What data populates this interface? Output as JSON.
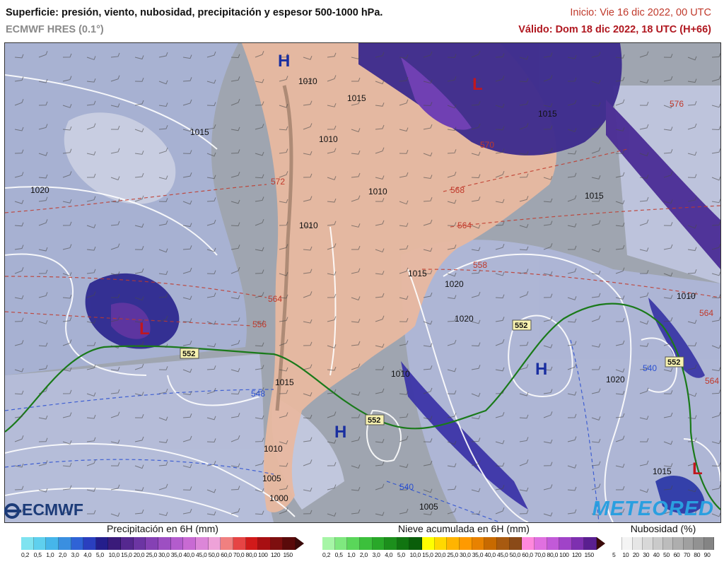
{
  "header": {
    "title": "Superficie: presión, viento, nubosidad, precipitación y espesor 500-1000 hPa.",
    "model": "ECMWF HRES (0.1°)",
    "init": "Inicio: Vie 16 dic 2022, 00 UTC",
    "valid": "Válido: Dom 18 dic 2022, 18 UTC (H+66)"
  },
  "map": {
    "pressure_centers": [
      {
        "type": "H",
        "color": "#1a2fa0"
      },
      {
        "type": "L",
        "color": "#c0171f"
      },
      {
        "type": "L",
        "color": "#c0171f"
      },
      {
        "type": "H",
        "color": "#1a2fa0"
      },
      {
        "type": "H",
        "color": "#1a2fa0"
      },
      {
        "type": "L",
        "color": "#c0171f"
      }
    ],
    "isobar_labels": [
      "1015",
      "1020",
      "1010",
      "1015",
      "1010",
      "1010",
      "1015",
      "1020",
      "1015",
      "1020",
      "1010",
      "1015",
      "1010",
      "1005",
      "1000",
      "1005",
      "1020",
      "1010",
      "1015",
      "1015",
      "1010"
    ],
    "thickness_labels_red": [
      "576",
      "572",
      "570",
      "568",
      "564",
      "564",
      "558",
      "556",
      "564",
      "564"
    ],
    "thickness_labels_blue": [
      "548",
      "540",
      "540"
    ],
    "boxed_labels": [
      "552",
      "552",
      "552",
      "552"
    ]
  },
  "logos": {
    "ecmwf": "ECMWF",
    "meteored": "METEORED"
  },
  "legends": {
    "precip": {
      "title": "Precipitación en 6H (mm)",
      "ticks": [
        "0,2",
        "0,5",
        "1,0",
        "2,0",
        "3,0",
        "4,0",
        "5,0",
        "10,0",
        "15,0",
        "20,0",
        "25,0",
        "30,0",
        "35,0",
        "40,0",
        "45,0",
        "50,0",
        "60,0",
        "70,0",
        "80,0",
        "100",
        "120",
        "150"
      ],
      "colors": [
        "#7fe3f0",
        "#5fd0ee",
        "#46b6ea",
        "#3a8fe0",
        "#2f63d6",
        "#2a3fbf",
        "#241e8c",
        "#3a1b7a",
        "#55288f",
        "#6c35a3",
        "#8541b4",
        "#9d4fc2",
        "#b35ccd",
        "#c86ad3",
        "#dc86d8",
        "#eea2d8",
        "#f08080",
        "#e64444",
        "#d11a1a",
        "#a80f12",
        "#7e0f0f",
        "#5a0a0a"
      ]
    },
    "snow": {
      "title": "Nieve acumulada en 6H (mm)",
      "ticks": [
        "0,2",
        "0,5",
        "1,0",
        "2,0",
        "3,0",
        "4,0",
        "5,0",
        "10,0",
        "15,0",
        "20,0",
        "25,0",
        "30,0",
        "35,0",
        "40,0",
        "45,0",
        "50,0",
        "60,0",
        "70,0",
        "80,0",
        "100",
        "120",
        "150"
      ],
      "colors": [
        "#a6f5a6",
        "#7fe87f",
        "#5ad65a",
        "#3cc03c",
        "#29a829",
        "#1c8f1c",
        "#117511",
        "#0a5e0a",
        "#ffff00",
        "#ffd800",
        "#ffb400",
        "#ff9a00",
        "#e88200",
        "#c86a00",
        "#a85a10",
        "#8a4a18",
        "#ff88dd",
        "#e070e0",
        "#c25ad8",
        "#a043c8",
        "#7e30b0",
        "#5a1f90"
      ]
    },
    "cloud": {
      "title": "Nubosidad (%)",
      "ticks": [
        "5",
        "10",
        "20",
        "30",
        "40",
        "50",
        "60",
        "70",
        "80",
        "90"
      ],
      "colors": [
        "#ffffff",
        "#f4f4f4",
        "#e6e6e6",
        "#d8d8d8",
        "#cacaca",
        "#bcbcbc",
        "#aeaeae",
        "#a0a0a0",
        "#929292",
        "#848484"
      ]
    }
  }
}
